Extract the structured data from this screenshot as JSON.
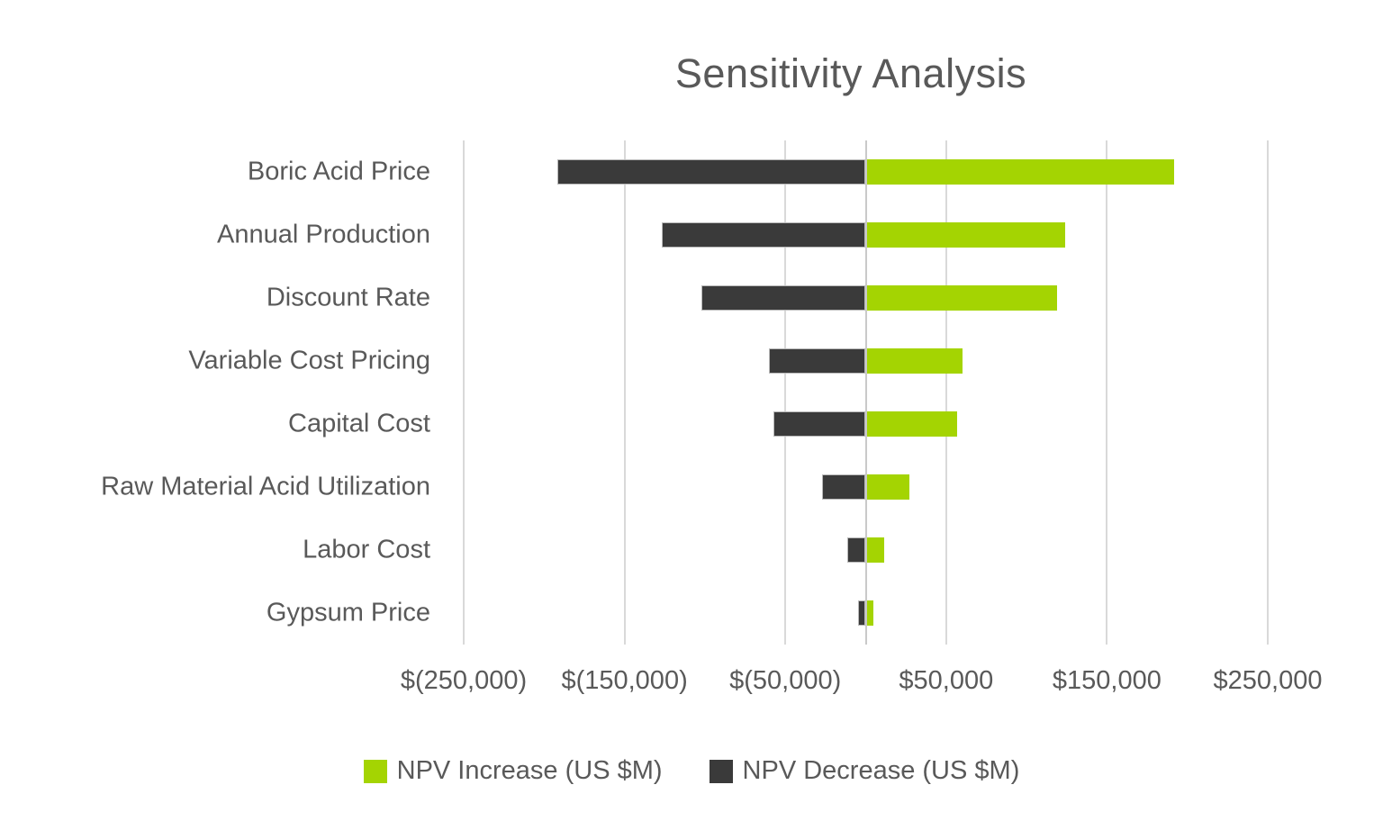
{
  "title": "Sensitivity Analysis",
  "colors": {
    "increase": "#a4d402",
    "decrease": "#3a3a3a",
    "gridline": "#d9d9d9",
    "zero_line": "#c9c9c9",
    "text": "#595959",
    "background": "#ffffff"
  },
  "x_axis": {
    "tick_labels": [
      "$(250,000)",
      "$(150,000)",
      "$(50,000)",
      "$50,000",
      "$150,000",
      "$250,000"
    ],
    "tick_values": [
      -250000,
      -150000,
      -50000,
      50000,
      150000,
      250000
    ]
  },
  "legend": {
    "items": [
      {
        "label": "NPV Increase (US $M)",
        "series": "increase",
        "swatch_icon": "green-square-icon"
      },
      {
        "label": "NPV Decrease (US $M)",
        "series": "decrease",
        "swatch_icon": "dark-square-icon"
      }
    ]
  },
  "chart_data": {
    "type": "bar",
    "orientation": "horizontal-tornado",
    "title": "Sensitivity Analysis",
    "categories": [
      "Boric Acid Price",
      "Annual Production",
      "Discount Rate",
      "Variable Cost Pricing",
      "Capital Cost",
      "Raw Material Acid Utilization",
      "Labor Cost",
      "Gypsum Price"
    ],
    "series": [
      {
        "name": "NPV Increase (US $M)",
        "color": "#a4d402",
        "values": [
          192000,
          124000,
          119000,
          60000,
          57000,
          27000,
          11500,
          5000
        ]
      },
      {
        "name": "NPV Decrease (US $M)",
        "color": "#3a3a3a",
        "values": [
          -192000,
          -127000,
          -102000,
          -60000,
          -57500,
          -27000,
          -11500,
          -5000
        ]
      }
    ],
    "xlim": [
      -250000,
      250000
    ],
    "grid": true,
    "zero_baseline": 0,
    "legend_position": "bottom"
  }
}
